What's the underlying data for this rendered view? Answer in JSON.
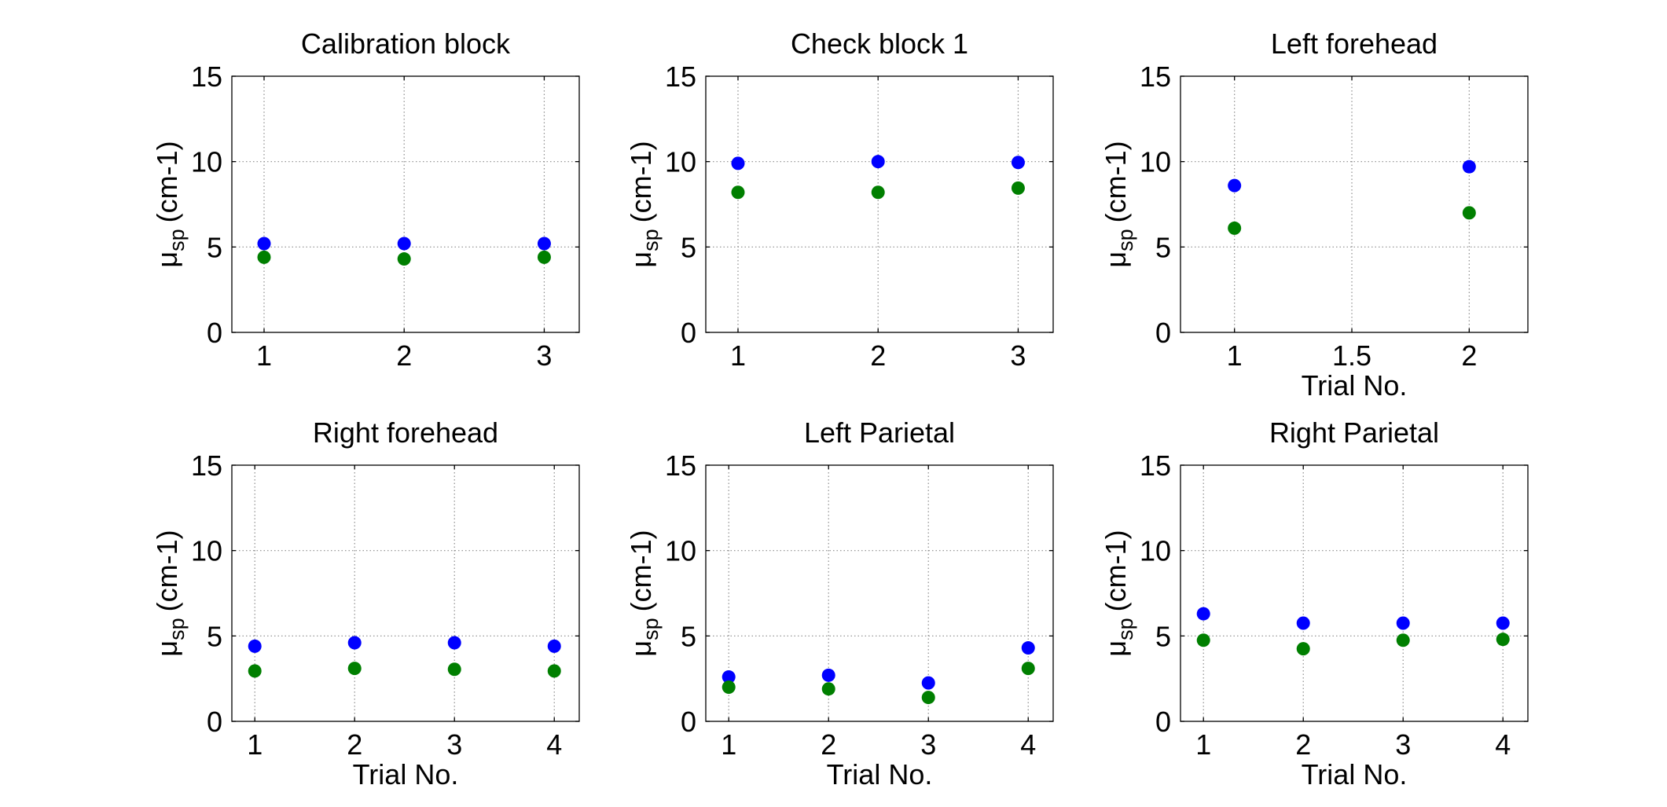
{
  "colors": {
    "series_blue": "#0000ff",
    "series_green": "#007f00",
    "grid": "#8c8c8c",
    "axes": "#000000",
    "background": "#ffffff"
  },
  "chart_data": [
    {
      "type": "scatter",
      "title": "Calibration block",
      "ylabel": {
        "symbol": "μ",
        "subscript": "sp",
        "unit": "(cm-1)"
      },
      "xlabel": "",
      "xlim": [
        0.77,
        3.25
      ],
      "ylim": [
        0,
        15
      ],
      "xticks": [
        1,
        2,
        3
      ],
      "xtick_labels": [
        "1",
        "2",
        "3"
      ],
      "yticks": [
        0,
        5,
        10,
        15
      ],
      "ytick_labels": [
        "0",
        "5",
        "10",
        "15"
      ],
      "grid": true,
      "series": [
        {
          "color": "blue",
          "x": [
            1,
            2,
            3
          ],
          "y": [
            5.2,
            5.2,
            5.2
          ]
        },
        {
          "color": "green",
          "x": [
            1,
            2,
            3
          ],
          "y": [
            4.4,
            4.3,
            4.4
          ]
        }
      ]
    },
    {
      "type": "scatter",
      "title": "Check block 1",
      "ylabel": {
        "symbol": "μ",
        "subscript": "sp",
        "unit": "(cm-1)"
      },
      "xlabel": "",
      "xlim": [
        0.77,
        3.25
      ],
      "ylim": [
        0,
        15
      ],
      "xticks": [
        1,
        2,
        3
      ],
      "xtick_labels": [
        "1",
        "2",
        "3"
      ],
      "yticks": [
        0,
        5,
        10,
        15
      ],
      "ytick_labels": [
        "0",
        "5",
        "10",
        "15"
      ],
      "grid": true,
      "series": [
        {
          "color": "blue",
          "x": [
            1,
            2,
            3
          ],
          "y": [
            9.9,
            10.0,
            9.95
          ]
        },
        {
          "color": "green",
          "x": [
            1,
            2,
            3
          ],
          "y": [
            8.2,
            8.2,
            8.45
          ]
        }
      ]
    },
    {
      "type": "scatter",
      "title": "Left forehead",
      "ylabel": {
        "symbol": "μ",
        "subscript": "sp",
        "unit": "(cm-1)"
      },
      "xlabel": "Trial No.",
      "xlim": [
        0.77,
        2.25
      ],
      "ylim": [
        0,
        15
      ],
      "xticks": [
        1,
        1.5,
        2
      ],
      "xtick_labels": [
        "1",
        "1.5",
        "2"
      ],
      "yticks": [
        0,
        5,
        10,
        15
      ],
      "ytick_labels": [
        "0",
        "5",
        "10",
        "15"
      ],
      "grid": true,
      "series": [
        {
          "color": "blue",
          "x": [
            1,
            2
          ],
          "y": [
            8.6,
            9.7
          ]
        },
        {
          "color": "green",
          "x": [
            1,
            2
          ],
          "y": [
            6.1,
            7.0
          ]
        }
      ]
    },
    {
      "type": "scatter",
      "title": "Right forehead",
      "ylabel": {
        "symbol": "μ",
        "subscript": "sp",
        "unit": "(cm-1)"
      },
      "xlabel": "Trial No.",
      "xlim": [
        0.77,
        4.25
      ],
      "ylim": [
        0,
        15
      ],
      "xticks": [
        1,
        2,
        3,
        4
      ],
      "xtick_labels": [
        "1",
        "2",
        "3",
        "4"
      ],
      "yticks": [
        0,
        5,
        10,
        15
      ],
      "ytick_labels": [
        "0",
        "5",
        "10",
        "15"
      ],
      "grid": true,
      "series": [
        {
          "color": "blue",
          "x": [
            1,
            2,
            3,
            4
          ],
          "y": [
            4.4,
            4.6,
            4.6,
            4.4
          ]
        },
        {
          "color": "green",
          "x": [
            1,
            2,
            3,
            4
          ],
          "y": [
            2.95,
            3.1,
            3.05,
            2.95
          ]
        }
      ]
    },
    {
      "type": "scatter",
      "title": "Left Parietal",
      "ylabel": {
        "symbol": "μ",
        "subscript": "sp",
        "unit": "(cm-1)"
      },
      "xlabel": "Trial No.",
      "xlim": [
        0.77,
        4.25
      ],
      "ylim": [
        0,
        15
      ],
      "xticks": [
        1,
        2,
        3,
        4
      ],
      "xtick_labels": [
        "1",
        "2",
        "3",
        "4"
      ],
      "yticks": [
        0,
        5,
        10,
        15
      ],
      "ytick_labels": [
        "0",
        "5",
        "10",
        "15"
      ],
      "grid": true,
      "series": [
        {
          "color": "blue",
          "x": [
            1,
            2,
            3,
            4
          ],
          "y": [
            2.6,
            2.7,
            2.25,
            4.3
          ]
        },
        {
          "color": "green",
          "x": [
            1,
            2,
            3,
            4
          ],
          "y": [
            2.0,
            1.9,
            1.4,
            3.1
          ]
        }
      ]
    },
    {
      "type": "scatter",
      "title": "Right Parietal",
      "ylabel": {
        "symbol": "μ",
        "subscript": "sp",
        "unit": "(cm-1)"
      },
      "xlabel": "Trial No.",
      "xlim": [
        0.77,
        4.25
      ],
      "ylim": [
        0,
        15
      ],
      "xticks": [
        1,
        2,
        3,
        4
      ],
      "xtick_labels": [
        "1",
        "2",
        "3",
        "4"
      ],
      "yticks": [
        0,
        5,
        10,
        15
      ],
      "ytick_labels": [
        "0",
        "5",
        "10",
        "15"
      ],
      "grid": true,
      "series": [
        {
          "color": "blue",
          "x": [
            1,
            2,
            3,
            4
          ],
          "y": [
            6.3,
            5.75,
            5.75,
            5.75
          ]
        },
        {
          "color": "green",
          "x": [
            1,
            2,
            3,
            4
          ],
          "y": [
            4.75,
            4.25,
            4.75,
            4.8
          ]
        }
      ]
    }
  ]
}
